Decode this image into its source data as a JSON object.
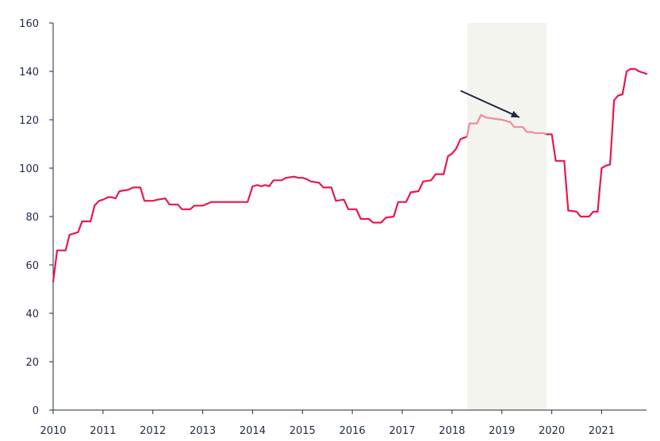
{
  "chart_data": {
    "type": "line",
    "title": "",
    "xlabel": "",
    "ylabel": "",
    "xlim": [
      2010.0,
      2021.9
    ],
    "ylim": [
      0,
      160
    ],
    "yticks": [
      0,
      20,
      40,
      60,
      80,
      100,
      120,
      140,
      160
    ],
    "ytick_labels": [
      "0",
      "20",
      "40",
      "60",
      "80",
      "100",
      "120",
      "140",
      "160"
    ],
    "xticks": [
      2010,
      2011,
      2012,
      2013,
      2014,
      2015,
      2016,
      2017,
      2018,
      2019,
      2020,
      2021
    ],
    "xtick_labels": [
      "2010",
      "2011",
      "2012",
      "2013",
      "2014",
      "2015",
      "2016",
      "2017",
      "2018",
      "2019",
      "2020",
      "2021"
    ],
    "grid": false,
    "legend": "none",
    "colors": {
      "line": "#e8174e",
      "line_highlight": "#f0899e",
      "shade": "#f4f4ee",
      "arrow": "#1f2a44",
      "axis": "#1f2a44"
    },
    "shaded_region": {
      "x": [
        2018.3,
        2019.9
      ]
    },
    "annotation_arrow": {
      "from": [
        2018.17,
        132
      ],
      "to": [
        2019.35,
        121
      ]
    },
    "series": [
      {
        "points": [
          [
            2010.0,
            53
          ],
          [
            2010.08,
            66
          ],
          [
            2010.25,
            66
          ],
          [
            2010.33,
            72.5
          ],
          [
            2010.5,
            73.5
          ],
          [
            2010.58,
            78
          ],
          [
            2010.75,
            78
          ],
          [
            2010.83,
            84.5
          ],
          [
            2010.92,
            86.5
          ],
          [
            2011.0,
            87
          ],
          [
            2011.1,
            88
          ],
          [
            2011.17,
            88
          ],
          [
            2011.25,
            87.5
          ],
          [
            2011.33,
            90.5
          ],
          [
            2011.5,
            91
          ],
          [
            2011.6,
            92
          ],
          [
            2011.75,
            92
          ],
          [
            2011.83,
            86.5
          ],
          [
            2012.0,
            86.5
          ],
          [
            2012.1,
            87
          ],
          [
            2012.25,
            87.5
          ],
          [
            2012.33,
            85
          ],
          [
            2012.5,
            85
          ],
          [
            2012.58,
            83
          ],
          [
            2012.75,
            83
          ],
          [
            2012.83,
            84.5
          ],
          [
            2013.0,
            84.5
          ],
          [
            2013.17,
            86
          ],
          [
            2013.5,
            86
          ],
          [
            2013.9,
            86
          ],
          [
            2014.0,
            92.5
          ],
          [
            2014.1,
            93
          ],
          [
            2014.17,
            92.5
          ],
          [
            2014.25,
            93
          ],
          [
            2014.33,
            92.5
          ],
          [
            2014.42,
            95
          ],
          [
            2014.58,
            95
          ],
          [
            2014.67,
            96
          ],
          [
            2014.83,
            96.5
          ],
          [
            2014.92,
            96
          ],
          [
            2015.0,
            96
          ],
          [
            2015.08,
            95.5
          ],
          [
            2015.17,
            94.5
          ],
          [
            2015.33,
            94
          ],
          [
            2015.42,
            92
          ],
          [
            2015.58,
            92
          ],
          [
            2015.67,
            86.5
          ],
          [
            2015.83,
            87
          ],
          [
            2015.92,
            83
          ],
          [
            2016.08,
            83
          ],
          [
            2016.17,
            79
          ],
          [
            2016.33,
            79
          ],
          [
            2016.42,
            77.5
          ],
          [
            2016.58,
            77.5
          ],
          [
            2016.67,
            79.5
          ],
          [
            2016.83,
            80
          ],
          [
            2016.92,
            86
          ],
          [
            2017.08,
            86
          ],
          [
            2017.17,
            90
          ],
          [
            2017.33,
            90.5
          ],
          [
            2017.42,
            94.5
          ],
          [
            2017.58,
            95
          ],
          [
            2017.67,
            97.5
          ],
          [
            2017.83,
            97.5
          ],
          [
            2017.92,
            105
          ],
          [
            2018.0,
            106
          ],
          [
            2018.08,
            108
          ],
          [
            2018.17,
            112
          ],
          [
            2018.3,
            113
          ],
          [
            2018.35,
            118.5
          ],
          [
            2018.5,
            118.5
          ],
          [
            2018.58,
            122
          ],
          [
            2018.67,
            121
          ],
          [
            2018.83,
            120.5
          ],
          [
            2019.0,
            120
          ],
          [
            2019.17,
            119
          ],
          [
            2019.25,
            117
          ],
          [
            2019.42,
            117
          ],
          [
            2019.5,
            115
          ],
          [
            2019.58,
            115
          ],
          [
            2019.67,
            114.5
          ],
          [
            2019.83,
            114.5
          ],
          [
            2019.9,
            114
          ],
          [
            2020.0,
            114
          ],
          [
            2020.08,
            103
          ],
          [
            2020.25,
            103
          ],
          [
            2020.33,
            82.5
          ],
          [
            2020.5,
            82
          ],
          [
            2020.58,
            80
          ],
          [
            2020.75,
            80
          ],
          [
            2020.83,
            82
          ],
          [
            2020.92,
            82
          ],
          [
            2021.0,
            100
          ],
          [
            2021.08,
            101
          ],
          [
            2021.17,
            101.5
          ],
          [
            2021.25,
            128
          ],
          [
            2021.33,
            130
          ],
          [
            2021.42,
            130.5
          ],
          [
            2021.5,
            140
          ],
          [
            2021.58,
            141
          ],
          [
            2021.67,
            141
          ],
          [
            2021.75,
            140
          ],
          [
            2021.9,
            139
          ]
        ]
      }
    ]
  }
}
